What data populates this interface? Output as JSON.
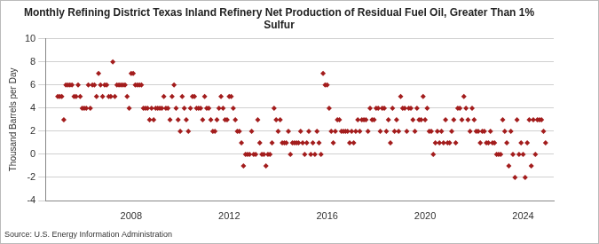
{
  "chart_data": {
    "type": "scatter",
    "title": "Monthly Refining District Texas Inland Refinery Net Production of Residual Fuel Oil, Greater Than 1% Sulfur",
    "y_label": "Thousand Barrels per Day",
    "source": "Source: U.S. Energy Information Administration",
    "color": "#a31d1d",
    "marker": "diamond",
    "grid": true,
    "xlim": [
      2004.5,
      2025.25
    ],
    "xticks": [
      2008,
      2012,
      2016,
      2020,
      2024
    ],
    "ylim": [
      -4,
      10
    ],
    "yticks": [
      -4,
      -2,
      0,
      2,
      4,
      6,
      8,
      10
    ],
    "x": [
      2005.0,
      2005.083,
      2005.167,
      2005.25,
      2005.333,
      2005.417,
      2005.5,
      2005.583,
      2005.667,
      2005.75,
      2005.833,
      2005.917,
      2006.0,
      2006.083,
      2006.167,
      2006.25,
      2006.333,
      2006.417,
      2006.5,
      2006.583,
      2006.667,
      2006.75,
      2006.833,
      2006.917,
      2007.0,
      2007.083,
      2007.167,
      2007.25,
      2007.333,
      2007.417,
      2007.5,
      2007.583,
      2007.667,
      2007.75,
      2007.833,
      2007.917,
      2008.0,
      2008.083,
      2008.167,
      2008.25,
      2008.333,
      2008.417,
      2008.5,
      2008.583,
      2008.667,
      2008.75,
      2008.833,
      2008.917,
      2009.0,
      2009.083,
      2009.167,
      2009.25,
      2009.333,
      2009.417,
      2009.5,
      2009.583,
      2009.667,
      2009.75,
      2009.833,
      2009.917,
      2010.0,
      2010.083,
      2010.167,
      2010.25,
      2010.333,
      2010.417,
      2010.5,
      2010.583,
      2010.667,
      2010.75,
      2010.833,
      2010.917,
      2011.0,
      2011.083,
      2011.167,
      2011.25,
      2011.333,
      2011.417,
      2011.5,
      2011.583,
      2011.667,
      2011.75,
      2011.833,
      2011.917,
      2012.0,
      2012.083,
      2012.167,
      2012.25,
      2012.333,
      2012.417,
      2012.5,
      2012.583,
      2012.667,
      2012.75,
      2012.833,
      2012.917,
      2013.0,
      2013.083,
      2013.167,
      2013.25,
      2013.333,
      2013.417,
      2013.5,
      2013.583,
      2013.667,
      2013.75,
      2013.833,
      2013.917,
      2014.0,
      2014.083,
      2014.167,
      2014.25,
      2014.333,
      2014.417,
      2014.5,
      2014.583,
      2014.667,
      2014.75,
      2014.833,
      2014.917,
      2015.0,
      2015.083,
      2015.167,
      2015.25,
      2015.333,
      2015.417,
      2015.5,
      2015.583,
      2015.667,
      2015.75,
      2015.833,
      2015.917,
      2016.0,
      2016.083,
      2016.167,
      2016.25,
      2016.333,
      2016.417,
      2016.5,
      2016.583,
      2016.667,
      2016.75,
      2016.833,
      2016.917,
      2017.0,
      2017.083,
      2017.167,
      2017.25,
      2017.333,
      2017.417,
      2017.5,
      2017.583,
      2017.667,
      2017.75,
      2017.833,
      2017.917,
      2018.0,
      2018.083,
      2018.167,
      2018.25,
      2018.333,
      2018.417,
      2018.5,
      2018.583,
      2018.667,
      2018.75,
      2018.833,
      2018.917,
      2019.0,
      2019.083,
      2019.167,
      2019.25,
      2019.333,
      2019.417,
      2019.5,
      2019.583,
      2019.667,
      2019.75,
      2019.833,
      2019.917,
      2020.0,
      2020.083,
      2020.167,
      2020.25,
      2020.333,
      2020.417,
      2020.5,
      2020.583,
      2020.667,
      2020.75,
      2020.833,
      2020.917,
      2021.0,
      2021.083,
      2021.167,
      2021.25,
      2021.333,
      2021.417,
      2021.5,
      2021.583,
      2021.667,
      2021.75,
      2021.833,
      2021.917,
      2022.0,
      2022.083,
      2022.167,
      2022.25,
      2022.333,
      2022.417,
      2022.5,
      2022.583,
      2022.667,
      2022.75,
      2022.833,
      2022.917,
      2023.0,
      2023.083,
      2023.167,
      2023.25,
      2023.333,
      2023.417,
      2023.5,
      2023.583,
      2023.667,
      2023.75,
      2023.833,
      2023.917,
      2024.0,
      2024.083,
      2024.167,
      2024.25,
      2024.333,
      2024.417,
      2024.5,
      2024.583,
      2024.667,
      2024.75,
      2024.833,
      2024.917
    ],
    "values": [
      5,
      5,
      5,
      3,
      6,
      6,
      6,
      6,
      5,
      5,
      6,
      5,
      4,
      4,
      4,
      6,
      4,
      6,
      6,
      5,
      7,
      6,
      5,
      6,
      6,
      5,
      5,
      8,
      5,
      6,
      6,
      6,
      6,
      6,
      5,
      4,
      7,
      7,
      6,
      6,
      6,
      6,
      4,
      4,
      4,
      3,
      4,
      3,
      4,
      4,
      4,
      4,
      5,
      4,
      4,
      3,
      5,
      6,
      4,
      3,
      2,
      5,
      4,
      3,
      2,
      4,
      5,
      5,
      4,
      4,
      4,
      3,
      5,
      4,
      4,
      3,
      2,
      2,
      3,
      4,
      5,
      4,
      3,
      3,
      5,
      5,
      4,
      3,
      2,
      2,
      1,
      -1,
      0,
      0,
      0,
      2,
      0,
      0,
      3,
      1,
      0,
      0,
      -1,
      0,
      0,
      1,
      4,
      3,
      2,
      3,
      1,
      1,
      1,
      2,
      0,
      1,
      1,
      1,
      1,
      2,
      1,
      0,
      1,
      2,
      0,
      1,
      0,
      2,
      1,
      0,
      7,
      6,
      6,
      4,
      2,
      1,
      2,
      3,
      3,
      2,
      2,
      2,
      2,
      1,
      2,
      1,
      2,
      3,
      2,
      3,
      3,
      3,
      2,
      4,
      3,
      3,
      4,
      4,
      2,
      4,
      4,
      2,
      3,
      1,
      4,
      2,
      3,
      2,
      5,
      4,
      4,
      2,
      4,
      4,
      3,
      2,
      4,
      3,
      3,
      5,
      3,
      4,
      2,
      2,
      0,
      1,
      2,
      1,
      2,
      1,
      3,
      1,
      1,
      2,
      3,
      1,
      4,
      4,
      3,
      5,
      4,
      3,
      2,
      4,
      3,
      2,
      2,
      1,
      2,
      2,
      1,
      1,
      2,
      1,
      1,
      0,
      0,
      0,
      3,
      2,
      1,
      -1,
      2,
      0,
      -2,
      3,
      0,
      1,
      0,
      -2,
      1,
      3,
      -1,
      3,
      0,
      3,
      3,
      3,
      2,
      1
    ]
  }
}
